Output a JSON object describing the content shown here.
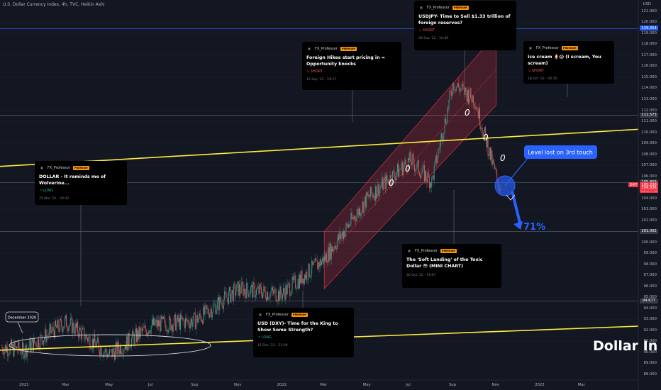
{
  "header": {
    "title": "U.S. Dollar Currency Index, 4h, TVC, Heikin Ashi"
  },
  "axis": {
    "currency_label": "USD",
    "y_ticks": [
      "121.000",
      "120.000",
      "119.000",
      "118.000",
      "117.000",
      "116.000",
      "115.000",
      "114.000",
      "113.000",
      "112.000",
      "111.000",
      "110.000",
      "109.000",
      "108.000",
      "107.000",
      "106.000",
      "105.000",
      "104.000",
      "103.000",
      "102.000",
      "101.000",
      "100.000",
      "99.000",
      "98.000",
      "97.000",
      "96.000",
      "95.000",
      "94.000",
      "93.000",
      "92.000",
      "91.000",
      "90.000",
      "89.000",
      "88.000"
    ],
    "x_ticks": [
      "2021",
      "Mar",
      "May",
      "Jul",
      "Sep",
      "Nov",
      "2022",
      "Mar",
      "May",
      "Jul",
      "Sep",
      "Nov",
      "2023",
      "Mar"
    ]
  },
  "price_tags": [
    {
      "value": "119.454",
      "bg": "#2962ff"
    },
    {
      "value": "111.573",
      "bg": "#363a45"
    },
    {
      "value": "105.459",
      "bg": "#363a45"
    },
    {
      "value": "105.200",
      "bg": "#f23645",
      "extra": "01:34:45",
      "tag": "DXY"
    },
    {
      "value": "104.936",
      "bg": "#f23645"
    },
    {
      "value": "101.002",
      "bg": "#363a45"
    },
    {
      "value": "94.677",
      "bg": "#363a45"
    }
  ],
  "ideas": [
    {
      "author": "FX_Professor",
      "badge": "PREMIUM",
      "title": "USDJPY- Time to Sell  $1.33 trillion of foreign reserves?",
      "signal": "↘ SHORT",
      "signal_type": "short",
      "date": "28 Sep '22 - 10:49"
    },
    {
      "author": "FX_Professor",
      "badge": "PREMIUM",
      "title": "Foreign Hikes start pricing in = Opportunity knocks",
      "signal": "↘ SHORT",
      "signal_type": "short",
      "date": "12 Sep '22 - 19:17"
    },
    {
      "author": "FX_Professor",
      "badge": "PREMIUM",
      "title": "Ice cream 🍦😱 (I scream, You scream)",
      "signal": "↘ SHORT",
      "signal_type": "short",
      "date": "18 Oct '22 - 00:35"
    },
    {
      "author": "FX_Professor",
      "badge": "PREMIUM",
      "title": "DOLLAR - It reminds me of Wolverine...",
      "signal": "↗ LONG",
      "signal_type": "long",
      "date": "25 Mar '21 - 20:42"
    },
    {
      "author": "FX_Professor",
      "badge": "PREMIUM",
      "title": "The 'Soft Landing' of the Toxic Dollar 😳 (MINI CHART)",
      "signal": "",
      "signal_type": "",
      "date": "26 Oct '22 - 19:07"
    },
    {
      "author": "FX_Professor",
      "badge": "PREMIUM",
      "title": "USD (DXY)- Time for the King to Show Some Strength?",
      "signal": "↗ LONG",
      "signal_type": "long",
      "date": "16 Dec '22 - 21:09"
    }
  ],
  "annotations": {
    "callout": "Level lost on 3rd touch",
    "percent": "71%",
    "date_bubble": "December 2020",
    "watermark": "Dollar In",
    "touch_marks": [
      "0",
      "0",
      "0",
      "0",
      "0"
    ]
  },
  "chart_data": {
    "type": "candlestick",
    "title": "U.S. Dollar Currency Index, 4h, TVC, Heikin Ashi",
    "ylim": [
      87.5,
      121.8
    ],
    "x_range": [
      "2021-01",
      "2023-05"
    ],
    "close_path": [
      {
        "x": "2020-12",
        "y": 90.5
      },
      {
        "x": "2021-01",
        "y": 90.2
      },
      {
        "x": "2021-03",
        "y": 92.8
      },
      {
        "x": "2021-05",
        "y": 89.8
      },
      {
        "x": "2021-07",
        "y": 92.5
      },
      {
        "x": "2021-09",
        "y": 92.9
      },
      {
        "x": "2021-11",
        "y": 95.8
      },
      {
        "x": "2022-01",
        "y": 95.3
      },
      {
        "x": "2022-03",
        "y": 98.5
      },
      {
        "x": "2022-05",
        "y": 104.0
      },
      {
        "x": "2022-07",
        "y": 107.5
      },
      {
        "x": "2022-08",
        "y": 105.5
      },
      {
        "x": "2022-09",
        "y": 114.5
      },
      {
        "x": "2022-10",
        "y": 113.0
      },
      {
        "x": "2022-11",
        "y": 106.0
      },
      {
        "x": "2022-11",
        "y": 105.2
      }
    ],
    "horizontal_levels": [
      119.454,
      111.573,
      105.459,
      101.002,
      94.677
    ],
    "trendlines": [
      {
        "name": "upper yellow",
        "from": {
          "x": "2020-12",
          "y": 106.9
        },
        "to": {
          "x": "2023-05",
          "y": 110.3
        }
      },
      {
        "name": "lower yellow",
        "from": {
          "x": "2020-12",
          "y": 90.2
        },
        "to": {
          "x": "2023-05",
          "y": 92.4
        }
      }
    ],
    "channel": {
      "from": [
        "2022-03",
        101.0,
        95.8
      ],
      "to": [
        "2022-11",
        119.0,
        112.5
      ]
    }
  }
}
